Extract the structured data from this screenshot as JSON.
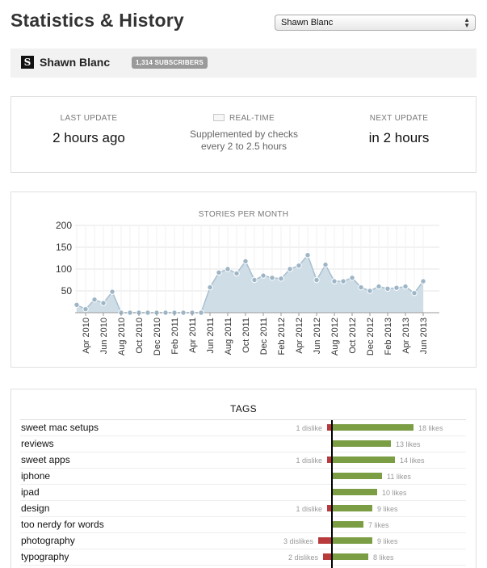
{
  "page": {
    "title": "Statistics & History"
  },
  "site_select": {
    "value": "Shawn Blanc"
  },
  "feed": {
    "logo_letter": "S",
    "name": "Shawn Blanc",
    "subscribers": "1,314 SUBSCRIBERS"
  },
  "updates": {
    "last": {
      "label": "LAST UPDATE",
      "value": "2 hours ago"
    },
    "realtime": {
      "label": "REAL-TIME",
      "desc_line1": "Supplemented by checks",
      "desc_line2": "every 2 to 2.5 hours"
    },
    "next": {
      "label": "NEXT UPDATE",
      "value": "in 2 hours"
    }
  },
  "chart_data": {
    "type": "area",
    "title": "STORIES PER MONTH",
    "x": [
      "Mar 2010",
      "Apr 2010",
      "May 2010",
      "Jun 2010",
      "Jul 2010",
      "Aug 2010",
      "Sep 2010",
      "Oct 2010",
      "Nov 2010",
      "Dec 2010",
      "Jan 2011",
      "Feb 2011",
      "Mar 2011",
      "Apr 2011",
      "May 2011",
      "Jun 2011",
      "Jul 2011",
      "Aug 2011",
      "Sep 2011",
      "Oct 2011",
      "Nov 2011",
      "Dec 2011",
      "Jan 2012",
      "Feb 2012",
      "Mar 2012",
      "Apr 2012",
      "May 2012",
      "Jun 2012",
      "Jul 2012",
      "Aug 2012",
      "Sep 2012",
      "Oct 2012",
      "Nov 2012",
      "Dec 2012",
      "Jan 2013",
      "Feb 2013",
      "Mar 2013",
      "Apr 2013",
      "May 2013",
      "Jun 2013"
    ],
    "values": [
      18,
      8,
      30,
      22,
      48,
      0,
      0,
      0,
      0,
      0,
      0,
      0,
      0,
      0,
      0,
      58,
      92,
      100,
      90,
      118,
      75,
      85,
      80,
      78,
      100,
      108,
      132,
      75,
      110,
      72,
      72,
      80,
      58,
      50,
      60,
      55,
      57,
      60,
      45,
      72
    ],
    "tick_labels": [
      "Apr 2010",
      "Jun 2010",
      "Aug 2010",
      "Oct 2010",
      "Dec 2010",
      "Feb 2011",
      "Apr 2011",
      "Jun 2011",
      "Aug 2011",
      "Oct 2011",
      "Dec 2011",
      "Feb 2012",
      "Apr 2012",
      "Jun 2012",
      "Aug 2012",
      "Oct 2012",
      "Dec 2012",
      "Feb 2013",
      "Apr 2013",
      "Jun 2013"
    ],
    "yticks": [
      50,
      100,
      150,
      200
    ],
    "ylim": [
      0,
      200
    ],
    "grid": true,
    "colors": {
      "fill": "#cfdde6",
      "line": "#a9bfcf",
      "point": "#9db5c6"
    }
  },
  "tags": {
    "title": "TAGS",
    "colors": {
      "like": "#7b9e45",
      "dislike": "#b83a3a"
    },
    "items": [
      {
        "name": "sweet mac setups",
        "likes": 18,
        "likes_label": "18 likes",
        "dislikes": 1,
        "dislikes_label": "1 dislike"
      },
      {
        "name": "reviews",
        "likes": 13,
        "likes_label": "13 likes",
        "dislikes": 0,
        "dislikes_label": ""
      },
      {
        "name": "sweet apps",
        "likes": 14,
        "likes_label": "14 likes",
        "dislikes": 1,
        "dislikes_label": "1 dislike"
      },
      {
        "name": "iphone",
        "likes": 11,
        "likes_label": "11 likes",
        "dislikes": 0,
        "dislikes_label": ""
      },
      {
        "name": "ipad",
        "likes": 10,
        "likes_label": "10 likes",
        "dislikes": 0,
        "dislikes_label": ""
      },
      {
        "name": "design",
        "likes": 9,
        "likes_label": "9 likes",
        "dislikes": 1,
        "dislikes_label": "1 dislike"
      },
      {
        "name": "too nerdy for words",
        "likes": 7,
        "likes_label": "7 likes",
        "dislikes": 0,
        "dislikes_label": ""
      },
      {
        "name": "photography",
        "likes": 9,
        "likes_label": "9 likes",
        "dislikes": 3,
        "dislikes_label": "3 dislikes"
      },
      {
        "name": "typography",
        "likes": 8,
        "likes_label": "8 likes",
        "dislikes": 2,
        "dislikes_label": "2 dislikes"
      }
    ]
  }
}
